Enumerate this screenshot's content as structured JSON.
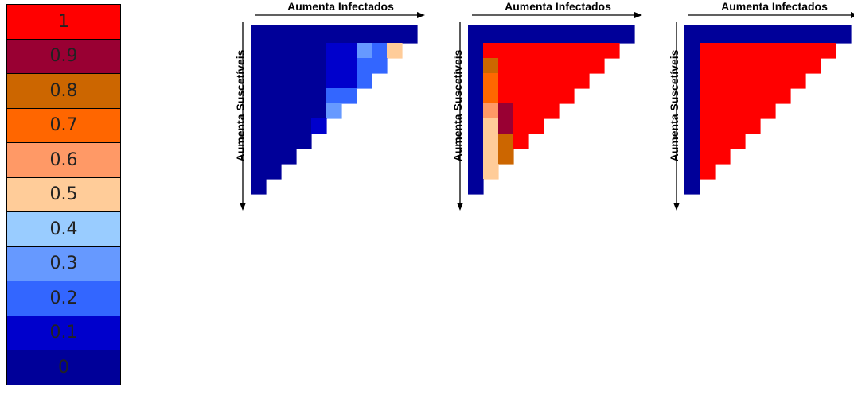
{
  "legend": {
    "items": [
      {
        "label": "1",
        "color": "#FF0000"
      },
      {
        "label": "0.9",
        "color": "#990033"
      },
      {
        "label": "0.8",
        "color": "#CC6600"
      },
      {
        "label": "0.7",
        "color": "#FF6600"
      },
      {
        "label": "0.6",
        "color": "#FF9966"
      },
      {
        "label": "0.5",
        "color": "#FFCC99"
      },
      {
        "label": "0.4",
        "color": "#99CCFF"
      },
      {
        "label": "0.3",
        "color": "#6699FF"
      },
      {
        "label": "0.2",
        "color": "#3366FF"
      },
      {
        "label": "0.1",
        "color": "#0000CC"
      },
      {
        "label": "0",
        "color": "#000099"
      }
    ]
  },
  "panels": [
    {
      "x_axis_label": "Aumenta Infectados",
      "y_axis_label": "Aumenta Suscetíveis",
      "cells": [
        [
          0,
          0,
          0,
          0,
          0,
          0,
          0,
          0,
          0,
          0,
          0
        ],
        [
          0,
          0,
          0,
          0,
          0,
          0.1,
          0.1,
          0.3,
          0.2,
          0.5
        ],
        [
          0,
          0,
          0,
          0,
          0,
          0.1,
          0.1,
          0.2,
          0.2
        ],
        [
          0,
          0,
          0,
          0,
          0,
          0.1,
          0.1,
          0.2
        ],
        [
          0,
          0,
          0,
          0,
          0,
          0.2,
          0.2
        ],
        [
          0,
          0,
          0,
          0,
          0,
          0.3
        ],
        [
          0,
          0,
          0,
          0,
          0.1
        ],
        [
          0,
          0,
          0,
          0
        ],
        [
          0,
          0,
          0
        ],
        [
          0,
          0
        ],
        [
          0
        ]
      ]
    },
    {
      "x_axis_label": "Aumenta Infectados",
      "y_axis_label": "Aumenta Suscetíveis",
      "cells": [
        [
          0,
          0,
          0,
          0,
          0,
          0,
          0,
          0,
          0,
          0,
          0
        ],
        [
          0,
          1,
          1,
          1,
          1,
          1,
          1,
          1,
          1,
          1
        ],
        [
          0,
          0.8,
          1,
          1,
          1,
          1,
          1,
          1,
          1
        ],
        [
          0,
          0.7,
          1,
          1,
          1,
          1,
          1,
          1
        ],
        [
          0,
          0.7,
          1,
          1,
          1,
          1,
          1
        ],
        [
          0,
          0.6,
          0.9,
          1,
          1,
          1
        ],
        [
          0,
          0.5,
          0.9,
          1,
          1
        ],
        [
          0,
          0.5,
          0.8,
          1
        ],
        [
          0,
          0.5,
          0.8
        ],
        [
          0,
          0.5
        ],
        [
          0
        ]
      ]
    },
    {
      "x_axis_label": "Aumenta Infectados",
      "y_axis_label": "Aumenta Suscetíveis",
      "cells": [
        [
          0,
          0,
          0,
          0,
          0,
          0,
          0,
          0,
          0,
          0,
          0
        ],
        [
          0,
          1,
          1,
          1,
          1,
          1,
          1,
          1,
          1,
          1
        ],
        [
          0,
          1,
          1,
          1,
          1,
          1,
          1,
          1,
          1
        ],
        [
          0,
          1,
          1,
          1,
          1,
          1,
          1,
          1
        ],
        [
          0,
          1,
          1,
          1,
          1,
          1,
          1
        ],
        [
          0,
          1,
          1,
          1,
          1,
          1
        ],
        [
          0,
          1,
          1,
          1,
          1
        ],
        [
          0,
          1,
          1,
          1
        ],
        [
          0,
          1,
          1
        ],
        [
          0,
          1
        ],
        [
          0
        ]
      ]
    }
  ]
}
